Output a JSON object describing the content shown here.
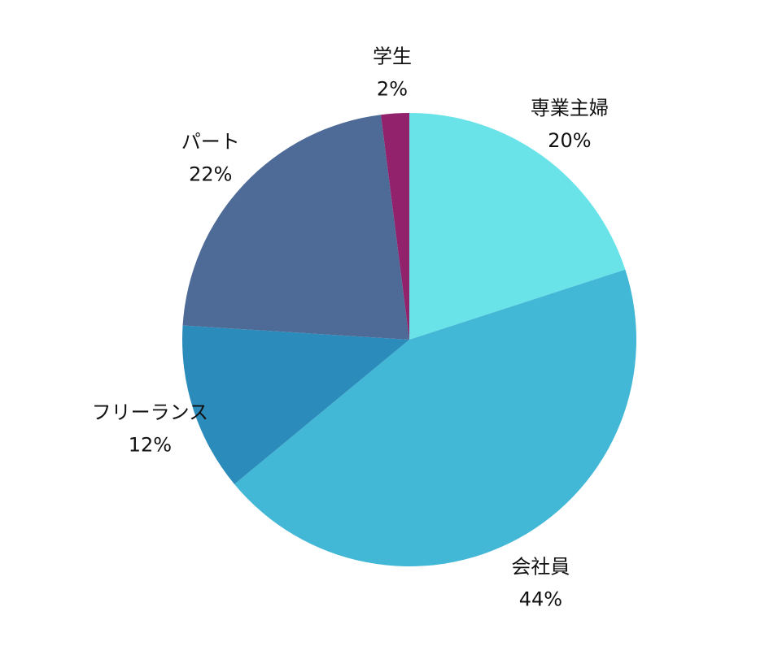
{
  "chart_data": {
    "type": "pie",
    "title": "",
    "slices": [
      {
        "label": "専業主婦",
        "value": 20,
        "percent_label": "20%",
        "color": "#69e3e8"
      },
      {
        "label": "会社員",
        "value": 44,
        "percent_label": "44%",
        "color": "#42b7d6"
      },
      {
        "label": "フリーランス",
        "value": 12,
        "percent_label": "12%",
        "color": "#2b8bba"
      },
      {
        "label": "パート",
        "value": 22,
        "percent_label": "22%",
        "color": "#4e6b97"
      },
      {
        "label": "学生",
        "value": 2,
        "percent_label": "2%",
        "color": "#92226b"
      }
    ],
    "start": "12 o'clock",
    "direction": "clockwise",
    "legend": "none"
  }
}
